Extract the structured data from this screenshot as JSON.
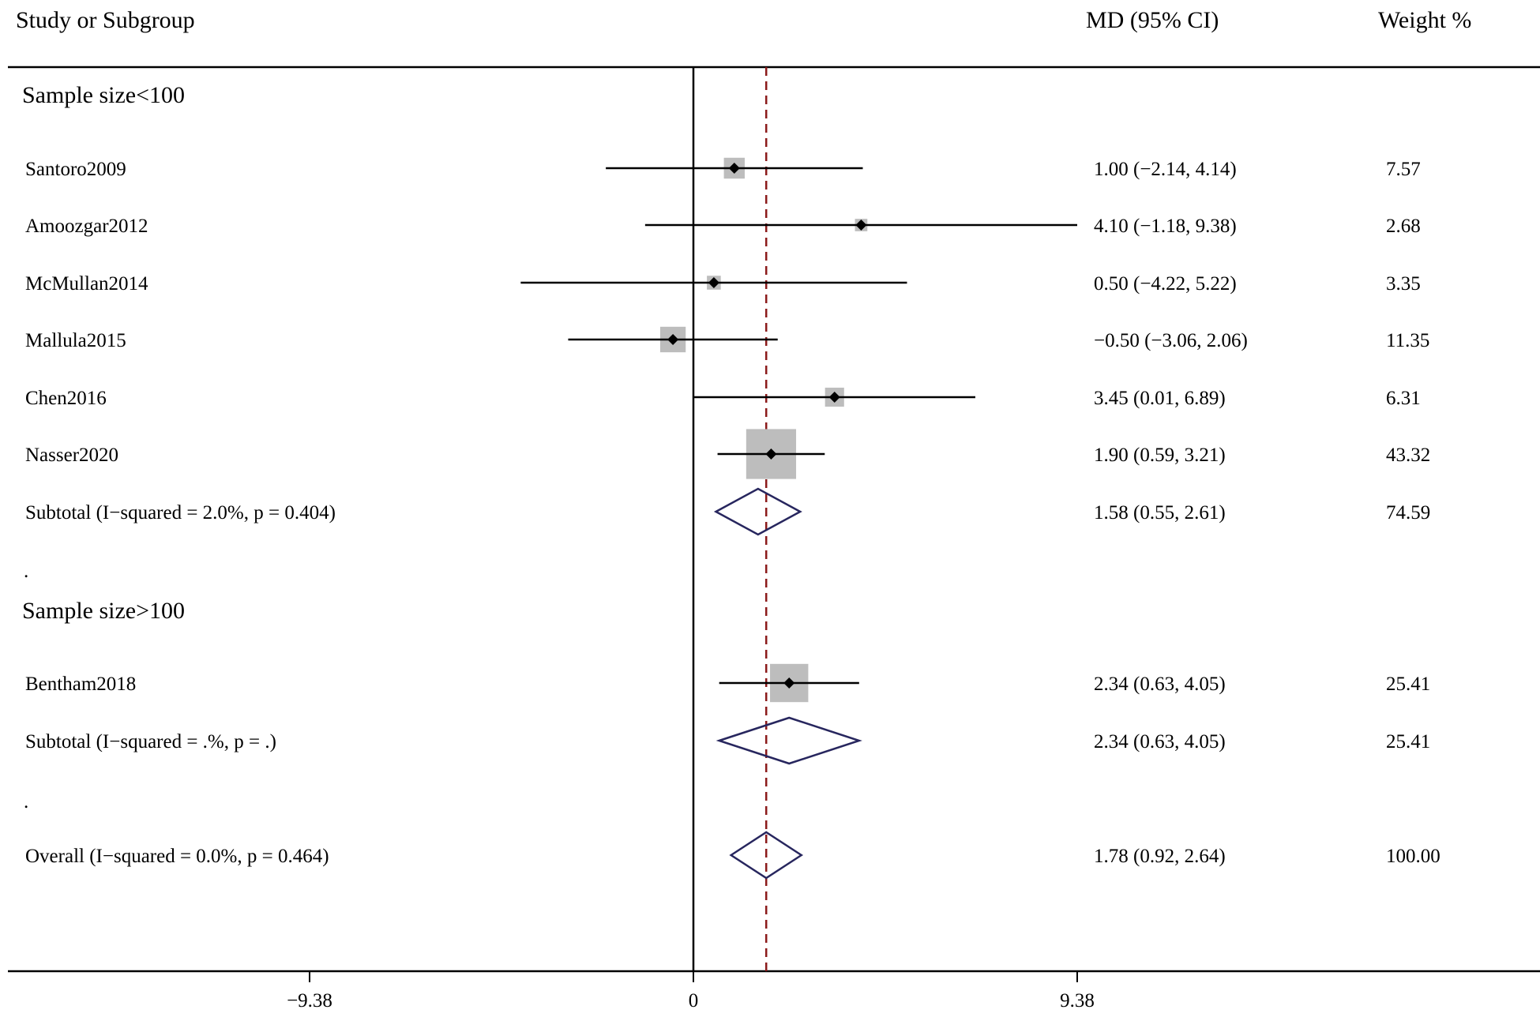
{
  "chart_data": {
    "type": "forest",
    "title": "",
    "headers": {
      "study": "Study or Subgroup",
      "effect": "MD (95% CI)",
      "weight": "Weight %"
    },
    "xlim": [
      -9.38,
      9.38
    ],
    "null_line": 0,
    "pooled_line": 1.78,
    "ticks": [
      {
        "value": -9.38,
        "label": "−9.38"
      },
      {
        "value": 0,
        "label": "0"
      },
      {
        "value": 9.38,
        "label": "9.38"
      }
    ],
    "rows": [
      {
        "kind": "group",
        "label": "Sample size<100"
      },
      {
        "kind": "study",
        "label": "Santoro2009",
        "md": 1.0,
        "lo": -2.14,
        "hi": 4.14,
        "ci_text": "1.00 (−2.14, 4.14)",
        "weight": 7.57,
        "weight_text": "7.57"
      },
      {
        "kind": "study",
        "label": "Amoozgar2012",
        "md": 4.1,
        "lo": -1.18,
        "hi": 9.38,
        "ci_text": "4.10 (−1.18, 9.38)",
        "weight": 2.68,
        "weight_text": "2.68"
      },
      {
        "kind": "study",
        "label": "McMullan2014",
        "md": 0.5,
        "lo": -4.22,
        "hi": 5.22,
        "ci_text": "0.50 (−4.22, 5.22)",
        "weight": 3.35,
        "weight_text": "3.35"
      },
      {
        "kind": "study",
        "label": "Mallula2015",
        "md": -0.5,
        "lo": -3.06,
        "hi": 2.06,
        "ci_text": "−0.50 (−3.06, 2.06)",
        "weight": 11.35,
        "weight_text": "11.35"
      },
      {
        "kind": "study",
        "label": "Chen2016",
        "md": 3.45,
        "lo": 0.01,
        "hi": 6.89,
        "ci_text": "3.45 (0.01, 6.89)",
        "weight": 6.31,
        "weight_text": "6.31"
      },
      {
        "kind": "study",
        "label": "Nasser2020",
        "md": 1.9,
        "lo": 0.59,
        "hi": 3.21,
        "ci_text": "1.90 (0.59, 3.21)",
        "weight": 43.32,
        "weight_text": "43.32"
      },
      {
        "kind": "pooled",
        "label": "Subtotal  (I−squared = 2.0%, p = 0.404)",
        "md": 1.58,
        "lo": 0.55,
        "hi": 2.61,
        "ci_text": "1.58 (0.55, 2.61)",
        "weight": 74.59,
        "weight_text": "74.59"
      },
      {
        "kind": "spacer",
        "label": "."
      },
      {
        "kind": "group",
        "label": "Sample size>100"
      },
      {
        "kind": "study",
        "label": "Bentham2018",
        "md": 2.34,
        "lo": 0.63,
        "hi": 4.05,
        "ci_text": "2.34 (0.63, 4.05)",
        "weight": 25.41,
        "weight_text": "25.41"
      },
      {
        "kind": "pooled",
        "label": "Subtotal  (I−squared = .%, p = .)",
        "md": 2.34,
        "lo": 0.63,
        "hi": 4.05,
        "ci_text": "2.34 (0.63, 4.05)",
        "weight": 25.41,
        "weight_text": "25.41"
      },
      {
        "kind": "spacer",
        "label": "."
      },
      {
        "kind": "pooled",
        "label": "Overall  (I−squared = 0.0%, p = 0.464)",
        "md": 1.78,
        "lo": 0.92,
        "hi": 2.64,
        "ci_text": "1.78 (0.92, 2.64)",
        "weight": 100.0,
        "weight_text": "100.00"
      }
    ],
    "colors": {
      "box": "#bdbdbd",
      "diamond": "#27265e",
      "pooled_line": "#8b1a1a",
      "axis": "#000000"
    }
  }
}
